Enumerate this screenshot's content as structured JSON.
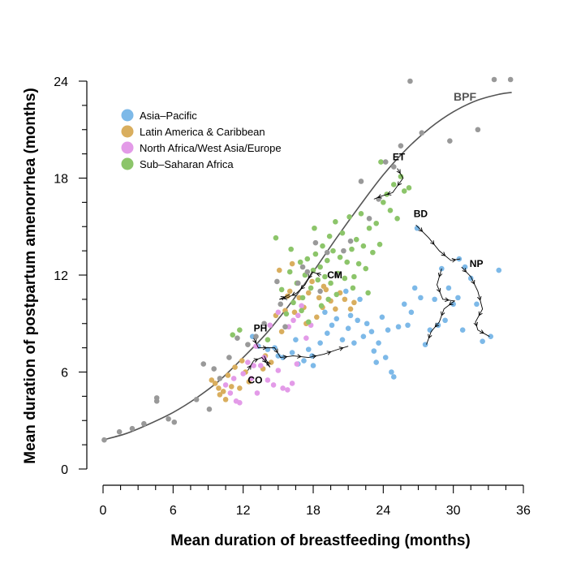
{
  "chart_data": {
    "type": "scatter",
    "xlabel": "Mean duration of breastfeeding (months)",
    "ylabel": "Mean duration of postpartum amenorrhea (months)",
    "xlim": [
      0,
      36
    ],
    "ylim": [
      0,
      24
    ],
    "xticks": [
      0,
      6,
      12,
      18,
      24,
      30,
      36
    ],
    "yticks": [
      0,
      6,
      12,
      18,
      24
    ],
    "grid": false,
    "legend": {
      "position": "top-left",
      "entries": [
        {
          "name": "Asia–Pacific",
          "color": "#7DB9E8"
        },
        {
          "name": "Latin America & Caribbean",
          "color": "#D9AE5E"
        },
        {
          "name": "North Africa/West Asia/Europe",
          "color": "#E39BE8"
        },
        {
          "name": "Sub–Saharan Africa",
          "color": "#8CC56A"
        }
      ]
    },
    "curve": {
      "label": "BPF",
      "color": "#555555",
      "points": [
        [
          0,
          1.8
        ],
        [
          2,
          2.2
        ],
        [
          4,
          2.8
        ],
        [
          6,
          3.5
        ],
        [
          8,
          4.4
        ],
        [
          10,
          5.5
        ],
        [
          12,
          6.9
        ],
        [
          14,
          8.4
        ],
        [
          16,
          10.2
        ],
        [
          18,
          12.2
        ],
        [
          20,
          14.3
        ],
        [
          22,
          16.3
        ],
        [
          24,
          18.2
        ],
        [
          26,
          19.8
        ],
        [
          28,
          21.1
        ],
        [
          30,
          22.1
        ],
        [
          32,
          22.8
        ],
        [
          34,
          23.2
        ],
        [
          35,
          23.3
        ]
      ]
    },
    "series": [
      {
        "name": "Asia–Pacific",
        "color": "#7DB9E8",
        "points": [
          [
            12.8,
            8.2
          ],
          [
            13.3,
            7.6
          ],
          [
            14.1,
            7.4
          ],
          [
            14.7,
            7.5
          ],
          [
            15.0,
            7.0
          ],
          [
            15.4,
            6.9
          ],
          [
            16.2,
            7.2
          ],
          [
            16.7,
            6.5
          ],
          [
            17.2,
            6.7
          ],
          [
            17.6,
            7.4
          ],
          [
            18.0,
            6.4
          ],
          [
            18.6,
            7.8
          ],
          [
            19.2,
            8.4
          ],
          [
            19.6,
            8.9
          ],
          [
            20.0,
            9.3
          ],
          [
            20.5,
            8.0
          ],
          [
            21.0,
            8.7
          ],
          [
            21.5,
            7.8
          ],
          [
            21.8,
            9.2
          ],
          [
            22.3,
            8.2
          ],
          [
            22.6,
            9.0
          ],
          [
            23.0,
            8.5
          ],
          [
            23.2,
            7.3
          ],
          [
            23.6,
            7.8
          ],
          [
            23.9,
            9.4
          ],
          [
            24.2,
            6.9
          ],
          [
            24.4,
            8.6
          ],
          [
            24.7,
            6.0
          ],
          [
            24.9,
            5.7
          ],
          [
            25.3,
            8.8
          ],
          [
            25.8,
            10.2
          ],
          [
            26.1,
            8.9
          ],
          [
            26.4,
            9.7
          ],
          [
            26.7,
            11.2
          ],
          [
            27.2,
            10.6
          ],
          [
            27.6,
            7.7
          ],
          [
            28.0,
            8.6
          ],
          [
            28.4,
            10.5
          ],
          [
            28.7,
            8.9
          ],
          [
            29.0,
            12.4
          ],
          [
            29.3,
            9.2
          ],
          [
            29.6,
            11.2
          ],
          [
            30.0,
            10.2
          ],
          [
            30.4,
            10.6
          ],
          [
            30.5,
            13.0
          ],
          [
            30.8,
            8.6
          ],
          [
            31.0,
            12.5
          ],
          [
            31.5,
            11.8
          ],
          [
            32.0,
            10.2
          ],
          [
            32.5,
            7.9
          ],
          [
            33.2,
            8.2
          ],
          [
            33.9,
            12.3
          ],
          [
            26.9,
            14.9
          ],
          [
            16.5,
            8.0
          ],
          [
            17.9,
            7.0
          ],
          [
            19.0,
            9.7
          ],
          [
            20.8,
            11.0
          ],
          [
            21.2,
            9.5
          ],
          [
            22.0,
            10.5
          ],
          [
            23.4,
            6.6
          ]
        ]
      },
      {
        "name": "Latin America & Caribbean",
        "color": "#D9AE5E",
        "points": [
          [
            9.3,
            5.5
          ],
          [
            9.6,
            5.3
          ],
          [
            9.9,
            5.0
          ],
          [
            10.0,
            4.6
          ],
          [
            10.3,
            4.8
          ],
          [
            10.5,
            4.3
          ],
          [
            10.7,
            5.8
          ],
          [
            11.0,
            5.1
          ],
          [
            11.3,
            6.3
          ],
          [
            11.7,
            5.0
          ],
          [
            11.9,
            6.7
          ],
          [
            12.2,
            6.0
          ],
          [
            12.5,
            5.4
          ],
          [
            13.7,
            6.2
          ],
          [
            13.9,
            7.0
          ],
          [
            14.4,
            6.6
          ],
          [
            14.8,
            9.5
          ],
          [
            15.1,
            12.3
          ],
          [
            15.3,
            8.5
          ],
          [
            15.6,
            9.8
          ],
          [
            16.0,
            11.0
          ],
          [
            16.4,
            9.7
          ],
          [
            16.8,
            10.6
          ],
          [
            17.2,
            10.0
          ],
          [
            17.6,
            10.9
          ],
          [
            17.9,
            11.6
          ],
          [
            18.3,
            9.4
          ],
          [
            18.5,
            10.6
          ],
          [
            18.8,
            10.0
          ],
          [
            19.1,
            11.1
          ],
          [
            19.5,
            10.4
          ],
          [
            19.9,
            9.9
          ],
          [
            20.3,
            10.9
          ],
          [
            20.7,
            10.5
          ],
          [
            21.2,
            9.9
          ],
          [
            21.5,
            10.3
          ],
          [
            16.2,
            12.7
          ],
          [
            15.8,
            10.7
          ],
          [
            18.9,
            11.3
          ],
          [
            17.4,
            9.0
          ]
        ]
      },
      {
        "name": "North Africa/West Asia/Europe",
        "color": "#E39BE8",
        "points": [
          [
            10.5,
            5.2
          ],
          [
            10.9,
            4.7
          ],
          [
            11.2,
            5.6
          ],
          [
            11.7,
            4.1
          ],
          [
            12.0,
            5.9
          ],
          [
            12.4,
            6.6
          ],
          [
            12.7,
            5.6
          ],
          [
            13.2,
            4.7
          ],
          [
            13.5,
            6.4
          ],
          [
            13.8,
            6.9
          ],
          [
            14.1,
            5.5
          ],
          [
            14.6,
            5.2
          ],
          [
            15.0,
            6.1
          ],
          [
            15.4,
            5.0
          ],
          [
            15.8,
            4.9
          ],
          [
            16.2,
            5.3
          ],
          [
            16.6,
            6.5
          ],
          [
            15.0,
            9.7
          ],
          [
            15.9,
            8.8
          ],
          [
            16.7,
            9.5
          ],
          [
            17.0,
            10.1
          ],
          [
            17.4,
            8.1
          ],
          [
            17.8,
            8.9
          ],
          [
            16.3,
            9.2
          ],
          [
            13.1,
            7.6
          ],
          [
            14.3,
            8.9
          ],
          [
            12.9,
            6.4
          ],
          [
            11.4,
            4.2
          ]
        ]
      },
      {
        "name": "Sub–Saharan Africa",
        "color": "#8CC56A",
        "points": [
          [
            11.1,
            8.3
          ],
          [
            11.7,
            8.6
          ],
          [
            14.1,
            8.0
          ],
          [
            14.8,
            14.3
          ],
          [
            15.3,
            11.1
          ],
          [
            15.7,
            9.6
          ],
          [
            16.0,
            12.2
          ],
          [
            16.3,
            10.3
          ],
          [
            16.6,
            11.5
          ],
          [
            16.9,
            12.8
          ],
          [
            17.1,
            10.6
          ],
          [
            17.3,
            12.0
          ],
          [
            17.5,
            13.0
          ],
          [
            17.8,
            11.2
          ],
          [
            18.0,
            12.3
          ],
          [
            18.2,
            13.3
          ],
          [
            18.4,
            11.7
          ],
          [
            18.6,
            12.5
          ],
          [
            18.8,
            13.8
          ],
          [
            19.0,
            11.9
          ],
          [
            19.2,
            12.9
          ],
          [
            19.4,
            14.4
          ],
          [
            19.5,
            11.5
          ],
          [
            19.7,
            13.5
          ],
          [
            19.9,
            15.3
          ],
          [
            20.1,
            12.1
          ],
          [
            20.3,
            13.1
          ],
          [
            20.5,
            14.6
          ],
          [
            20.7,
            11.8
          ],
          [
            20.9,
            12.8
          ],
          [
            21.1,
            15.6
          ],
          [
            21.3,
            13.6
          ],
          [
            21.5,
            11.9
          ],
          [
            21.7,
            14.2
          ],
          [
            21.9,
            12.7
          ],
          [
            22.1,
            15.8
          ],
          [
            22.3,
            13.8
          ],
          [
            22.5,
            12.4
          ],
          [
            22.8,
            14.9
          ],
          [
            23.1,
            13.4
          ],
          [
            23.4,
            15.2
          ],
          [
            23.7,
            13.9
          ],
          [
            24.0,
            16.5
          ],
          [
            24.3,
            17.0
          ],
          [
            24.6,
            16.0
          ],
          [
            24.9,
            17.6
          ],
          [
            25.2,
            15.5
          ],
          [
            25.5,
            18.1
          ],
          [
            25.8,
            17.2
          ],
          [
            26.2,
            17.4
          ],
          [
            23.8,
            19.0
          ],
          [
            17.0,
            9.8
          ],
          [
            18.7,
            10.1
          ],
          [
            20.0,
            10.8
          ],
          [
            21.4,
            11.2
          ],
          [
            19.3,
            10.5
          ],
          [
            17.6,
            9.1
          ],
          [
            22.7,
            10.9
          ],
          [
            16.1,
            13.6
          ],
          [
            18.1,
            14.9
          ]
        ]
      },
      {
        "name": "",
        "color": "#999999",
        "points": [
          [
            0.1,
            1.8
          ],
          [
            1.4,
            2.3
          ],
          [
            2.5,
            2.5
          ],
          [
            3.5,
            2.8
          ],
          [
            4.6,
            4.2
          ],
          [
            4.6,
            4.4
          ],
          [
            5.6,
            3.1
          ],
          [
            6.1,
            2.9
          ],
          [
            8.0,
            4.3
          ],
          [
            8.6,
            6.5
          ],
          [
            9.1,
            3.7
          ],
          [
            9.5,
            6.2
          ],
          [
            10.8,
            6.9
          ],
          [
            11.5,
            8.1
          ],
          [
            12.4,
            7.7
          ],
          [
            13.1,
            8.2
          ],
          [
            13.8,
            9.0
          ],
          [
            15.2,
            10.2
          ],
          [
            15.6,
            8.8
          ],
          [
            16.7,
            11.5
          ],
          [
            17.5,
            12.2
          ],
          [
            18.6,
            11.0
          ],
          [
            19.2,
            13.4
          ],
          [
            20.0,
            12.0
          ],
          [
            21.2,
            14.1
          ],
          [
            22.1,
            17.8
          ],
          [
            22.8,
            15.5
          ],
          [
            23.6,
            16.7
          ],
          [
            24.2,
            19.0
          ],
          [
            24.9,
            18.7
          ],
          [
            25.5,
            20.0
          ],
          [
            26.3,
            24.0
          ],
          [
            27.3,
            20.8
          ],
          [
            29.7,
            20.3
          ],
          [
            32.1,
            21.0
          ],
          [
            33.5,
            24.1
          ],
          [
            34.9,
            24.1
          ],
          [
            20.6,
            13.5
          ],
          [
            18.2,
            14.0
          ],
          [
            14.9,
            11.6
          ],
          [
            10.0,
            5.6
          ],
          [
            17.1,
            12.5
          ]
        ]
      }
    ],
    "trajectories": [
      {
        "label": "ET",
        "points": [
          [
            25.2,
            18.6
          ],
          [
            25.7,
            18.0
          ],
          [
            24.8,
            17.1
          ],
          [
            23.9,
            16.9
          ],
          [
            23.2,
            16.7
          ]
        ]
      },
      {
        "label": "BD",
        "points": [
          [
            26.8,
            15.1
          ],
          [
            27.9,
            14.3
          ],
          [
            28.8,
            13.5
          ],
          [
            29.8,
            12.9
          ],
          [
            30.6,
            13.0
          ]
        ]
      },
      {
        "label": "NP",
        "points": [
          [
            30.7,
            12.5
          ],
          [
            31.5,
            11.9
          ],
          [
            32.1,
            11.0
          ],
          [
            32.5,
            9.9
          ],
          [
            31.9,
            9.1
          ],
          [
            32.1,
            8.6
          ],
          [
            33.1,
            8.2
          ]
        ]
      },
      {
        "label": "",
        "points": [
          [
            29.0,
            12.4
          ],
          [
            28.6,
            11.4
          ],
          [
            29.1,
            10.5
          ],
          [
            30.1,
            10.4
          ],
          [
            29.2,
            9.9
          ],
          [
            28.8,
            9.1
          ],
          [
            28.1,
            8.5
          ],
          [
            27.7,
            7.7
          ]
        ]
      },
      {
        "label": "CM",
        "points": [
          [
            18.7,
            12.0
          ],
          [
            17.9,
            12.2
          ],
          [
            17.3,
            11.4
          ],
          [
            16.6,
            10.9
          ],
          [
            15.8,
            10.6
          ],
          [
            15.1,
            10.5
          ],
          [
            16.0,
            10.8
          ]
        ]
      },
      {
        "label": "PH",
        "points": [
          [
            12.9,
            8.1
          ],
          [
            13.3,
            7.5
          ],
          [
            14.7,
            7.5
          ],
          [
            15.2,
            6.9
          ],
          [
            16.3,
            7.0
          ],
          [
            17.6,
            6.9
          ],
          [
            18.9,
            7.1
          ],
          [
            20.1,
            7.4
          ],
          [
            21.0,
            7.6
          ]
        ]
      },
      {
        "label": "CO",
        "points": [
          [
            12.4,
            6.1
          ],
          [
            12.9,
            6.7
          ],
          [
            13.6,
            6.9
          ],
          [
            14.3,
            6.3
          ],
          [
            13.8,
            7.0
          ]
        ]
      }
    ],
    "annotations": [
      {
        "label": "ET",
        "x": 24.8,
        "y": 19.1
      },
      {
        "label": "BD",
        "x": 26.6,
        "y": 15.6
      },
      {
        "label": "NP",
        "x": 31.4,
        "y": 12.5
      },
      {
        "label": "CM",
        "x": 19.2,
        "y": 11.8
      },
      {
        "label": "PH",
        "x": 12.9,
        "y": 8.5
      },
      {
        "label": "CO",
        "x": 12.4,
        "y": 5.3
      }
    ]
  }
}
